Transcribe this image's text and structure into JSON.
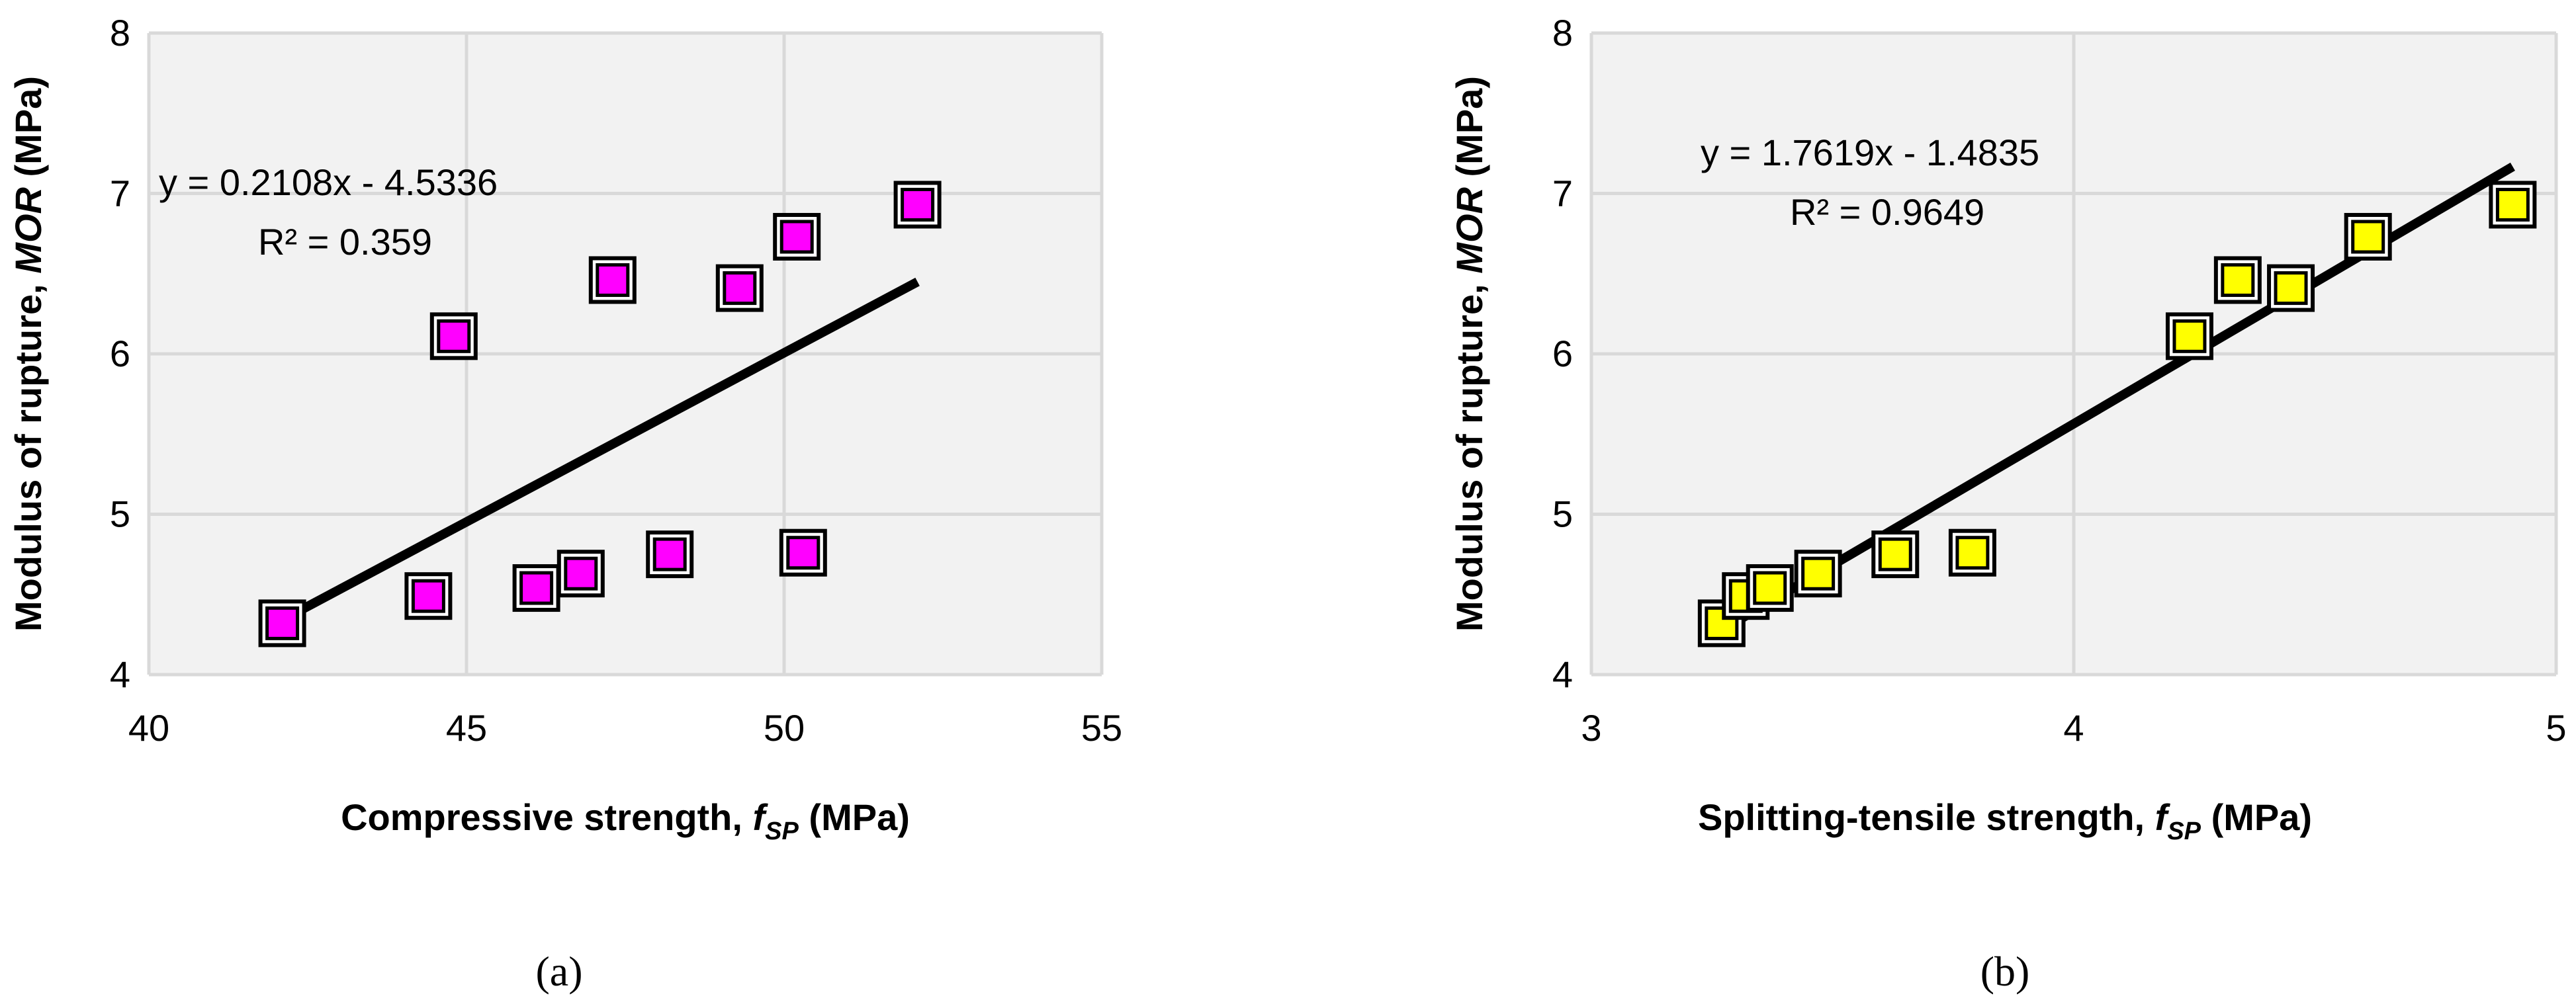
{
  "chart_data": [
    {
      "type": "scatter",
      "panel_label": "(a)",
      "xlabel_prefix": "Compressive strength, ",
      "xlabel_var": "f",
      "xlabel_sub": "SP",
      "xlabel_suffix": " (MPa)",
      "ylabel_prefix": "Modulus of rupture, ",
      "ylabel_var": "MOR",
      "ylabel_suffix": " (MPa)",
      "xlim": [
        40,
        55
      ],
      "ylim": [
        4,
        8
      ],
      "xticks": [
        40,
        45,
        50,
        55
      ],
      "yticks": [
        4,
        5,
        6,
        7,
        8
      ],
      "grid": true,
      "marker_color": "#ff00ff",
      "points": {
        "x": [
          42.1,
          44.4,
          44.8,
          46.1,
          46.8,
          47.3,
          48.2,
          49.3,
          50.2,
          50.3,
          52.1
        ],
        "y": [
          4.32,
          4.49,
          6.11,
          4.54,
          4.63,
          6.46,
          4.75,
          6.41,
          6.73,
          4.76,
          6.93
        ]
      },
      "trendline": {
        "slope": 0.2108,
        "intercept": -4.5336,
        "x_range": [
          42.1,
          52.1
        ]
      },
      "equation": "y = 0.2108x - 4.5336",
      "r_squared": "R² = 0.359"
    },
    {
      "type": "scatter",
      "panel_label": "(b)",
      "xlabel_prefix": "Splitting-tensile strength, ",
      "xlabel_var": "f",
      "xlabel_sub": "SP",
      "xlabel_suffix": " (MPa)",
      "ylabel_prefix": "Modulus of rupture, ",
      "ylabel_var": "MOR",
      "ylabel_suffix": " (MPa)",
      "xlim": [
        3,
        5
      ],
      "ylim": [
        4,
        8
      ],
      "xticks": [
        3,
        4,
        5
      ],
      "yticks": [
        4,
        5,
        6,
        7,
        8
      ],
      "grid": true,
      "marker_color": "#ffff00",
      "points": {
        "x": [
          3.27,
          3.32,
          3.37,
          3.47,
          3.63,
          3.79,
          4.24,
          4.34,
          4.45,
          4.61,
          4.91
        ],
        "y": [
          4.32,
          4.49,
          4.54,
          4.63,
          4.75,
          4.76,
          6.11,
          6.46,
          6.41,
          6.73,
          6.93
        ]
      },
      "trendline": {
        "slope": 1.7619,
        "intercept": -1.4835,
        "x_range": [
          3.27,
          4.91
        ]
      },
      "equation": "y = 1.7619x - 1.4835",
      "r_squared": "R² = 0.9649"
    }
  ]
}
